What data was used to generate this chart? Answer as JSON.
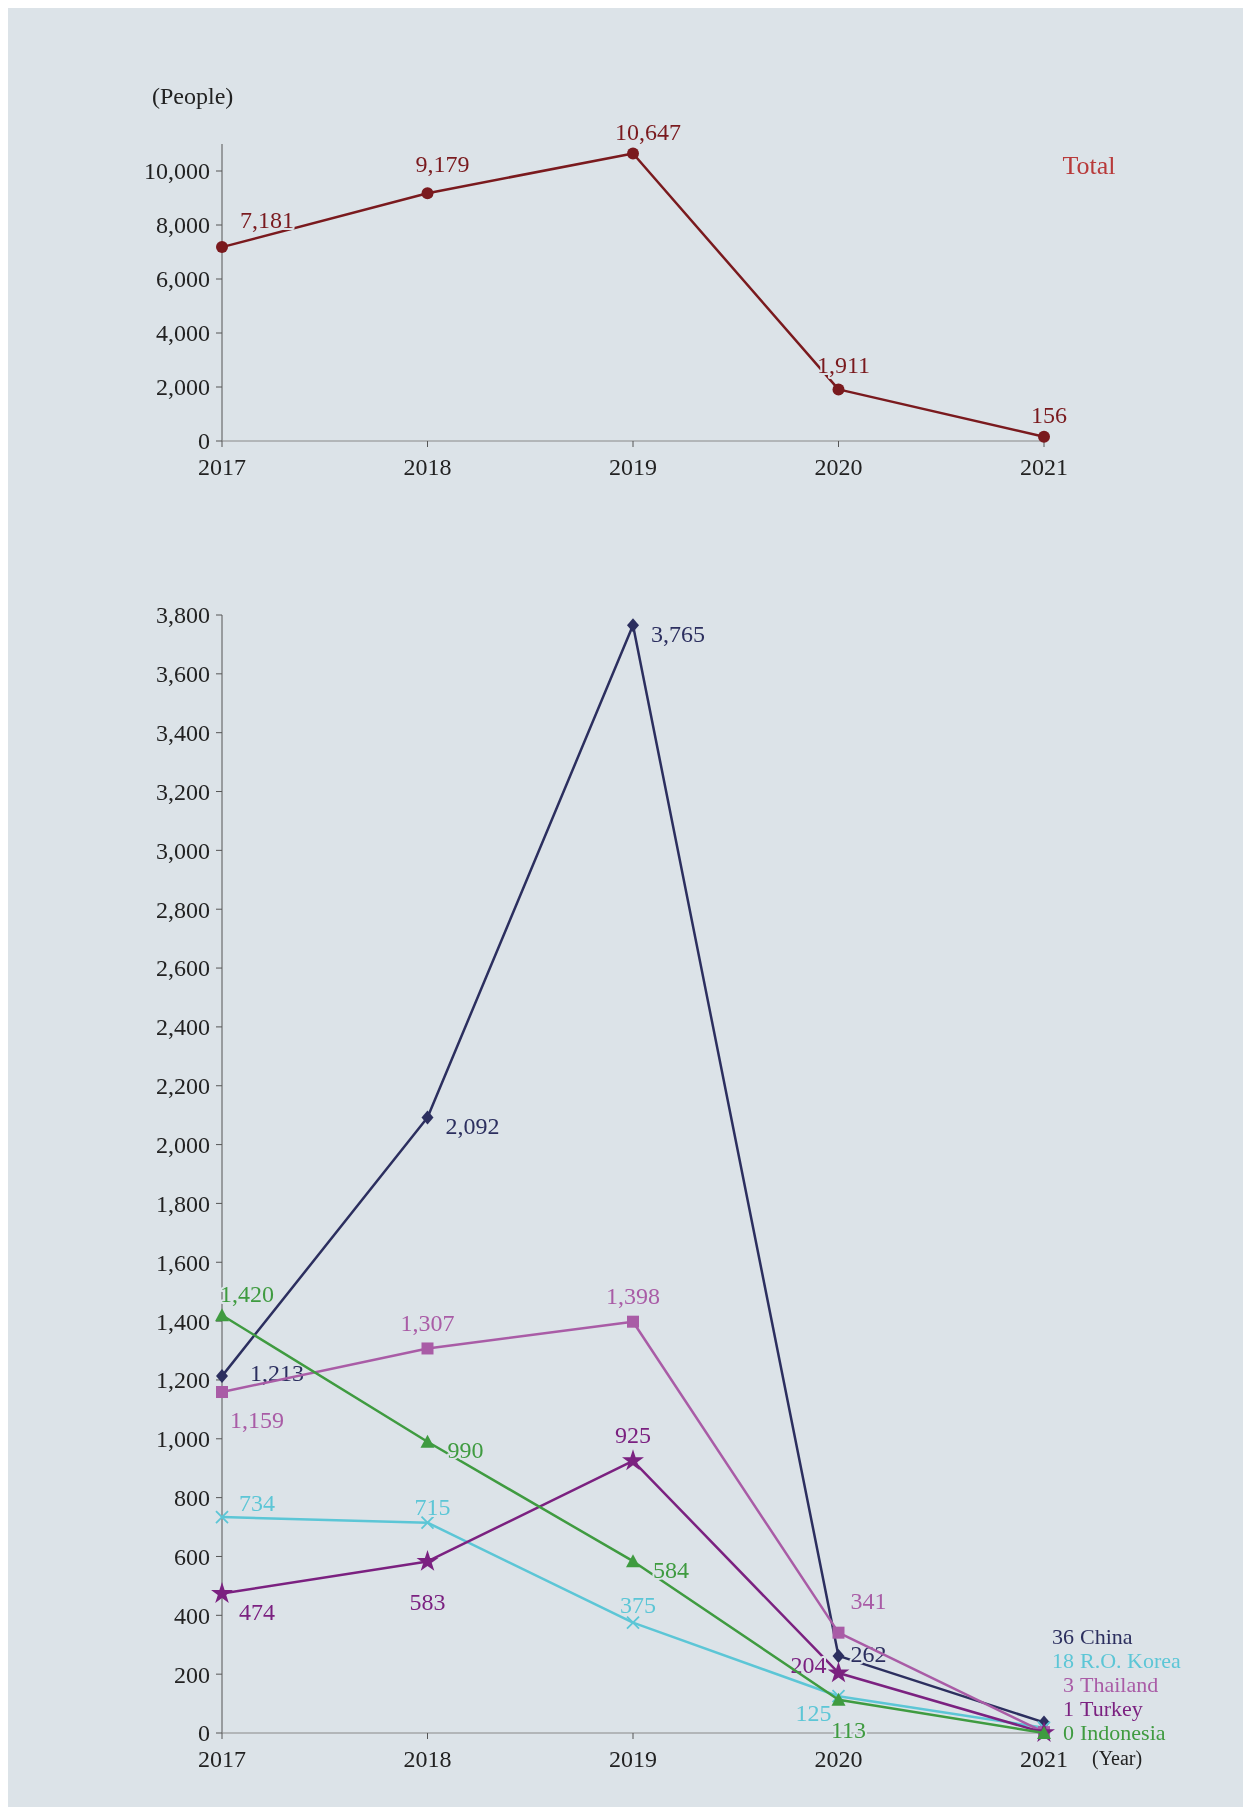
{
  "chart_data": [
    {
      "type": "line",
      "ylabel": "(People)",
      "categories": [
        "2017",
        "2018",
        "2019",
        "2020",
        "2021"
      ],
      "series": [
        {
          "name": "Total",
          "color": "#7a1a1e",
          "marker": "circle",
          "values": [
            7181,
            9179,
            10647,
            1911,
            156
          ],
          "value_labels": [
            "7,181",
            "9,179",
            "10,647",
            "1,911",
            "156"
          ]
        }
      ],
      "ylim": [
        0,
        11000
      ],
      "yticks": [
        0,
        {
          "value": 2000,
          "label": "2,000"
        },
        {
          "value": 4000,
          "label": "4,000"
        },
        {
          "value": 6000,
          "label": "6,000"
        },
        {
          "value": 8000,
          "label": "8,000"
        },
        {
          "value": 10000,
          "label": "10,000"
        }
      ],
      "grid": false
    },
    {
      "type": "line",
      "xlabel": "(Year)",
      "categories": [
        "2017",
        "2018",
        "2019",
        "2020",
        "2021"
      ],
      "series": [
        {
          "name": "China",
          "color": "#2c2f5f",
          "marker": "diamond",
          "values": [
            1213,
            2092,
            3765,
            262,
            36
          ],
          "value_labels": [
            "1,213",
            "2,092",
            "3,765",
            "262",
            "36"
          ]
        },
        {
          "name": "R.O. Korea",
          "color": "#5cc6d6",
          "marker": "cross",
          "values": [
            734,
            715,
            375,
            125,
            18
          ],
          "value_labels": [
            "734",
            "715",
            "375",
            "125",
            "18"
          ]
        },
        {
          "name": "Thailand",
          "color": "#a95ca6",
          "marker": "square",
          "values": [
            1159,
            1307,
            1398,
            341,
            3
          ],
          "value_labels": [
            "1,159",
            "1,307",
            "1,398",
            "341",
            "3"
          ]
        },
        {
          "name": "Turkey",
          "color": "#7b2180",
          "marker": "star",
          "values": [
            474,
            583,
            925,
            204,
            1
          ],
          "value_labels": [
            "474",
            "583",
            "925",
            "204",
            "1"
          ]
        },
        {
          "name": "Indonesia",
          "color": "#3f9b40",
          "marker": "triangle",
          "values": [
            1420,
            990,
            584,
            113,
            0
          ],
          "value_labels": [
            "1,420",
            "990",
            "584",
            "113",
            "0"
          ]
        }
      ],
      "ylim": [
        0,
        3800
      ],
      "yticks": [
        0,
        200,
        400,
        600,
        800,
        {
          "value": 1000,
          "label": "1,000"
        },
        {
          "value": 1200,
          "label": "1,200"
        },
        {
          "value": 1400,
          "label": "1,400"
        },
        {
          "value": 1600,
          "label": "1,600"
        },
        {
          "value": 1800,
          "label": "1,800"
        },
        {
          "value": 2000,
          "label": "2,000"
        },
        {
          "value": 2200,
          "label": "2,200"
        },
        {
          "value": 2400,
          "label": "2,400"
        },
        {
          "value": 2600,
          "label": "2,600"
        },
        {
          "value": 2800,
          "label": "2,800"
        },
        {
          "value": 3000,
          "label": "3,000"
        },
        {
          "value": 3200,
          "label": "3,200"
        },
        {
          "value": 3400,
          "label": "3,400"
        },
        {
          "value": 3600,
          "label": "3,600"
        },
        {
          "value": 3800,
          "label": "3,800"
        }
      ],
      "grid": false
    }
  ]
}
